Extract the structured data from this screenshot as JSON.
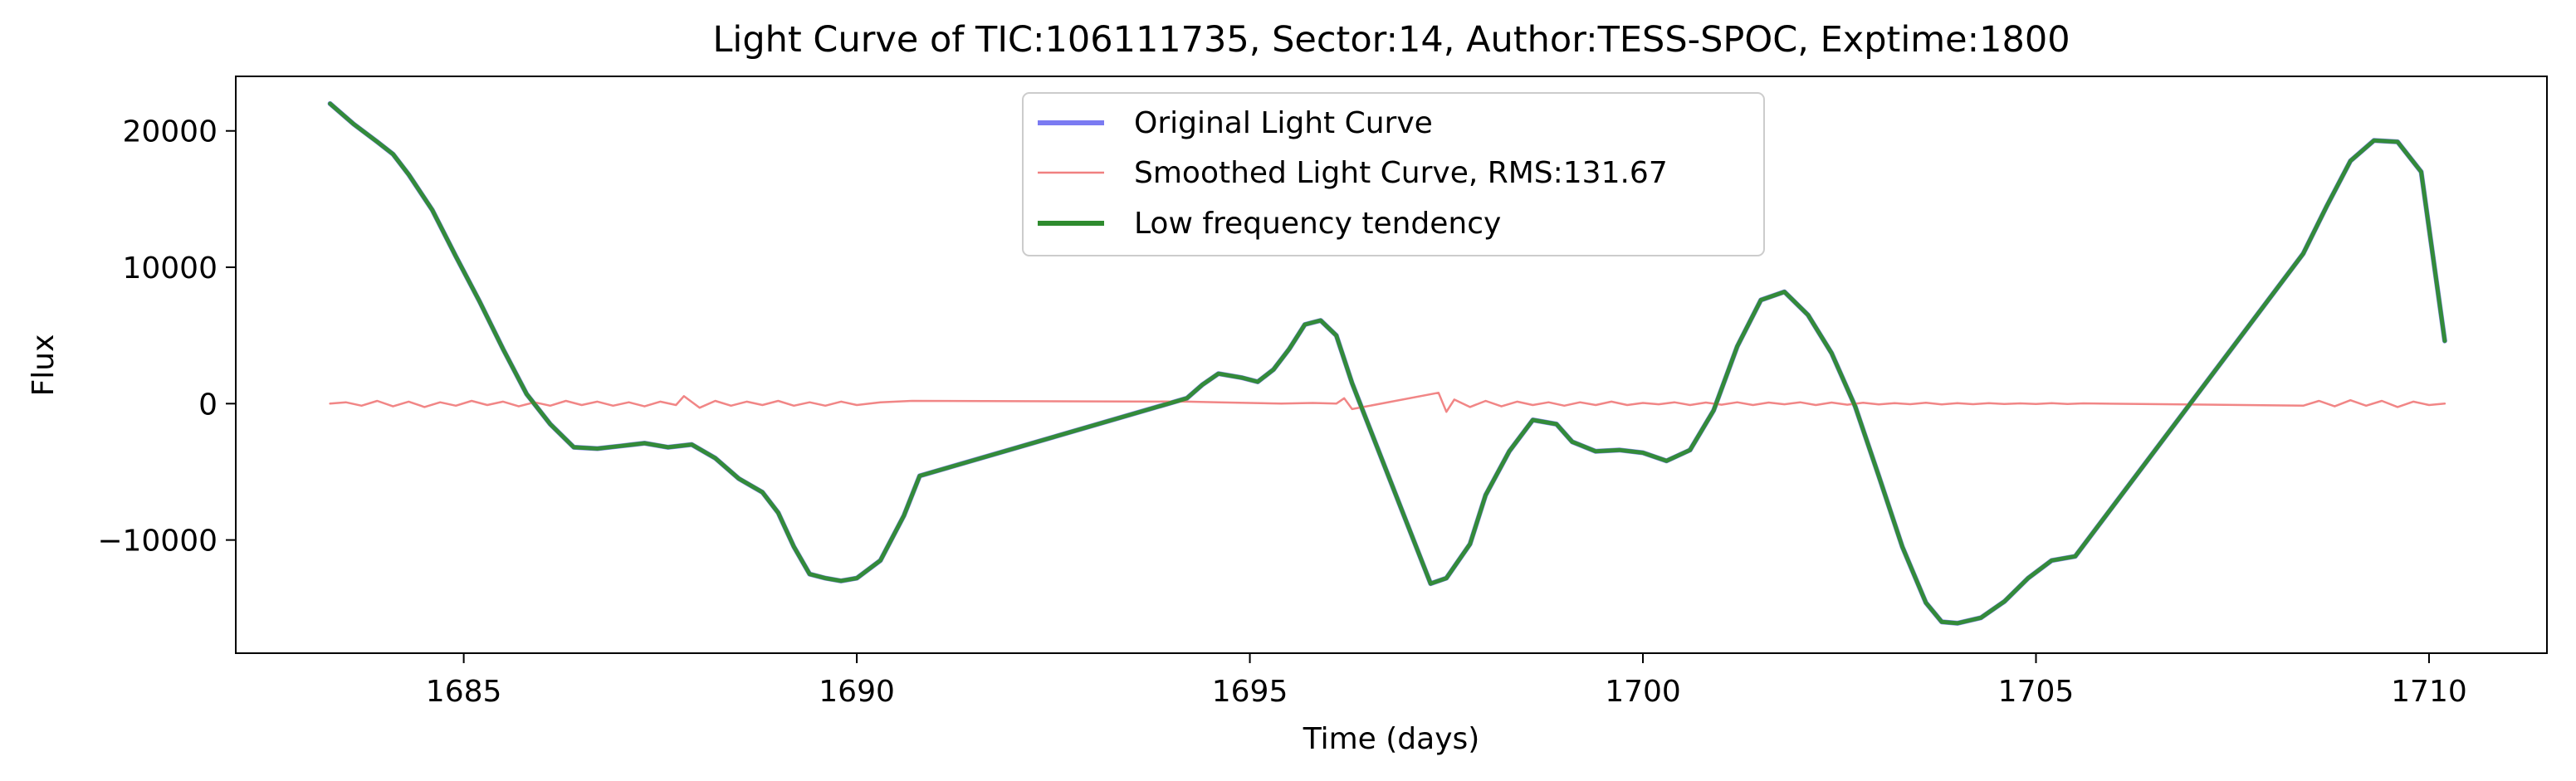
{
  "chart_data": {
    "type": "line",
    "title": "Light Curve of TIC:106111735, Sector:14, Author:TESS-SPOC, Exptime:1800",
    "xlabel": "Time (days)",
    "ylabel": "Flux",
    "xlim": [
      1682.1,
      1711.5
    ],
    "ylim": [
      -18300,
      24000
    ],
    "xticks": [
      1685,
      1690,
      1695,
      1700,
      1705,
      1710
    ],
    "xtick_labels": [
      "1685",
      "1690",
      "1695",
      "1700",
      "1705",
      "1710"
    ],
    "yticks": [
      -10000,
      0,
      10000,
      20000
    ],
    "ytick_labels": [
      "−10000",
      "0",
      "10000",
      "20000"
    ],
    "grid": false,
    "legend_position": "top-center",
    "series": [
      {
        "name": "Original Light Curve",
        "color": "#7b7bf2",
        "x": [
          1683.3,
          1683.6,
          1683.9,
          1684.1,
          1684.3,
          1684.6,
          1684.9,
          1685.2,
          1685.5,
          1685.8,
          1686.1,
          1686.4,
          1686.7,
          1687.0,
          1687.3,
          1687.6,
          1687.9,
          1688.2,
          1688.5,
          1688.8,
          1689.0,
          1689.2,
          1689.4,
          1689.6,
          1689.8,
          1690.0,
          1690.3,
          1690.6,
          1690.8,
          1694.2,
          1694.4,
          1694.6,
          1694.9,
          1695.1,
          1695.3,
          1695.5,
          1695.7,
          1695.9,
          1696.1,
          1696.3,
          1697.3,
          1697.5,
          1697.8,
          1698.0,
          1698.3,
          1698.6,
          1698.9,
          1699.1,
          1699.4,
          1699.7,
          1700.0,
          1700.3,
          1700.6,
          1700.9,
          1701.2,
          1701.5,
          1701.8,
          1702.1,
          1702.4,
          1702.7,
          1703.0,
          1703.3,
          1703.6,
          1703.8,
          1704.0,
          1704.3,
          1704.6,
          1704.9,
          1705.2,
          1705.5,
          1708.4,
          1708.7,
          1709.0,
          1709.3,
          1709.6,
          1709.9,
          1710.2
        ],
        "y": [
          22000,
          20500,
          19200,
          18300,
          16800,
          14200,
          10800,
          7500,
          4000,
          700,
          -1500,
          -3200,
          -3300,
          -3100,
          -2900,
          -3200,
          -3000,
          -4000,
          -5500,
          -6500,
          -8000,
          -10500,
          -12500,
          -12800,
          -13000,
          -12800,
          -11500,
          -8200,
          -5300,
          400,
          1400,
          2200,
          1900,
          1600,
          2500,
          4000,
          5800,
          6100,
          5000,
          1500,
          -13200,
          -12800,
          -10300,
          -6700,
          -3500,
          -1200,
          -1500,
          -2800,
          -3500,
          -3400,
          -3600,
          -4200,
          -3400,
          -500,
          4200,
          7600,
          8200,
          6500,
          3700,
          -200,
          -5300,
          -10500,
          -14600,
          -16000,
          -16100,
          -15700,
          -14500,
          -12800,
          -11500,
          -11200,
          11000,
          14500,
          17800,
          19300,
          19200,
          17000,
          4600
        ]
      },
      {
        "name": "Smoothed Light Curve, RMS:131.67",
        "color": "#f08080",
        "x": [
          1683.3,
          1683.5,
          1683.7,
          1683.9,
          1684.1,
          1684.3,
          1684.5,
          1684.7,
          1684.9,
          1685.1,
          1685.3,
          1685.5,
          1685.7,
          1685.9,
          1686.1,
          1686.3,
          1686.5,
          1686.7,
          1686.9,
          1687.1,
          1687.3,
          1687.5,
          1687.7,
          1687.8,
          1688.0,
          1688.2,
          1688.4,
          1688.6,
          1688.8,
          1689.0,
          1689.2,
          1689.4,
          1689.6,
          1689.8,
          1690.0,
          1690.3,
          1690.5,
          1690.7,
          1694.2,
          1694.6,
          1695.0,
          1695.4,
          1695.8,
          1696.1,
          1696.2,
          1696.3,
          1697.4,
          1697.5,
          1697.6,
          1697.8,
          1698.0,
          1698.2,
          1698.4,
          1698.6,
          1698.8,
          1699.0,
          1699.2,
          1699.4,
          1699.6,
          1699.8,
          1700.0,
          1700.2,
          1700.4,
          1700.6,
          1700.8,
          1701.0,
          1701.2,
          1701.4,
          1701.6,
          1701.8,
          1702.0,
          1702.2,
          1702.4,
          1702.6,
          1702.8,
          1703.0,
          1703.2,
          1703.4,
          1703.6,
          1703.8,
          1704.0,
          1704.2,
          1704.4,
          1704.6,
          1704.8,
          1705.0,
          1705.2,
          1705.4,
          1705.6,
          1708.4,
          1708.6,
          1708.8,
          1709.0,
          1709.2,
          1709.4,
          1709.6,
          1709.8,
          1710.0,
          1710.2
        ],
        "y": [
          0,
          100,
          -150,
          200,
          -200,
          150,
          -250,
          100,
          -150,
          200,
          -100,
          150,
          -200,
          100,
          -150,
          200,
          -100,
          150,
          -150,
          100,
          -200,
          150,
          -100,
          550,
          -300,
          200,
          -150,
          150,
          -100,
          200,
          -150,
          100,
          -150,
          150,
          -100,
          100,
          150,
          200,
          150,
          100,
          50,
          0,
          50,
          0,
          400,
          -400,
          800,
          -600,
          300,
          -250,
          200,
          -200,
          150,
          -100,
          100,
          -150,
          100,
          -100,
          150,
          -100,
          50,
          -50,
          100,
          -100,
          80,
          -80,
          100,
          -100,
          80,
          -50,
          100,
          -100,
          80,
          -80,
          60,
          -60,
          40,
          -40,
          60,
          -60,
          40,
          -40,
          30,
          -30,
          20,
          -20,
          30,
          -30,
          20,
          -150,
          200,
          -200,
          250,
          -150,
          200,
          -250,
          150,
          -100,
          0
        ]
      },
      {
        "name": "Low frequency tendency",
        "color": "#2e8b2e",
        "x": [
          1683.3,
          1683.6,
          1683.9,
          1684.1,
          1684.3,
          1684.6,
          1684.9,
          1685.2,
          1685.5,
          1685.8,
          1686.1,
          1686.4,
          1686.7,
          1687.0,
          1687.3,
          1687.6,
          1687.9,
          1688.2,
          1688.5,
          1688.8,
          1689.0,
          1689.2,
          1689.4,
          1689.6,
          1689.8,
          1690.0,
          1690.3,
          1690.6,
          1690.8,
          1694.2,
          1694.4,
          1694.6,
          1694.9,
          1695.1,
          1695.3,
          1695.5,
          1695.7,
          1695.9,
          1696.1,
          1696.3,
          1697.3,
          1697.5,
          1697.8,
          1698.0,
          1698.3,
          1698.6,
          1698.9,
          1699.1,
          1699.4,
          1699.7,
          1700.0,
          1700.3,
          1700.6,
          1700.9,
          1701.2,
          1701.5,
          1701.8,
          1702.1,
          1702.4,
          1702.7,
          1703.0,
          1703.3,
          1703.6,
          1703.8,
          1704.0,
          1704.3,
          1704.6,
          1704.9,
          1705.2,
          1705.5,
          1708.4,
          1708.7,
          1709.0,
          1709.3,
          1709.6,
          1709.9,
          1710.2
        ],
        "y": [
          22000,
          20500,
          19200,
          18300,
          16800,
          14200,
          10800,
          7500,
          4000,
          700,
          -1500,
          -3200,
          -3300,
          -3100,
          -2900,
          -3200,
          -3000,
          -4000,
          -5500,
          -6500,
          -8000,
          -10500,
          -12500,
          -12800,
          -13000,
          -12800,
          -11500,
          -8200,
          -5300,
          400,
          1400,
          2200,
          1900,
          1600,
          2500,
          4000,
          5800,
          6100,
          5000,
          1500,
          -13200,
          -12800,
          -10300,
          -6700,
          -3500,
          -1200,
          -1500,
          -2800,
          -3500,
          -3400,
          -3600,
          -4200,
          -3400,
          -500,
          4200,
          7600,
          8200,
          6500,
          3700,
          -200,
          -5300,
          -10500,
          -14600,
          -16000,
          -16100,
          -15700,
          -14500,
          -12800,
          -11500,
          -11200,
          11000,
          14500,
          17800,
          19300,
          19200,
          17000,
          4600
        ]
      }
    ]
  }
}
